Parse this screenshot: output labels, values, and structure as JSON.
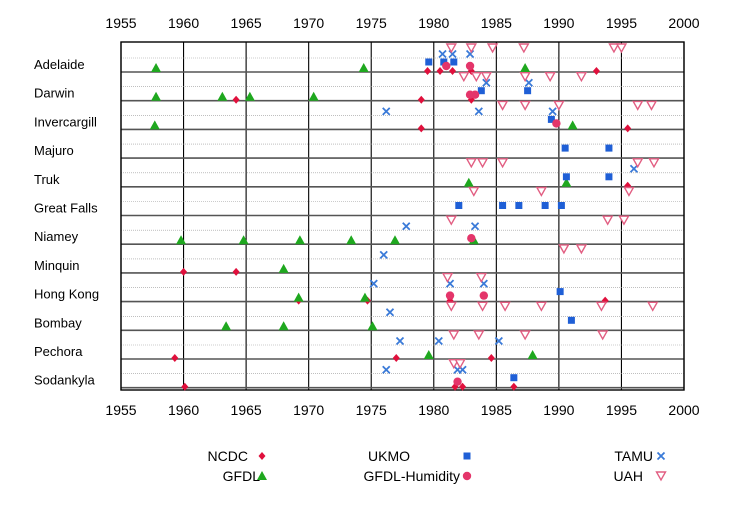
{
  "chart_data": {
    "type": "scatter",
    "title": "",
    "xlabel": "",
    "ylabel": "",
    "xlim": [
      1955,
      2000
    ],
    "x_ticks": [
      1955,
      1960,
      1965,
      1970,
      1975,
      1980,
      1985,
      1990,
      1995,
      2000
    ],
    "grid": true,
    "legend_position": "bottom",
    "stations": [
      "Adelaide",
      "Darwin",
      "Invercargill",
      "Majuro",
      "Truk",
      "Great Falls",
      "Niamey",
      "Minquin",
      "Hong Kong",
      "Bombay",
      "Pechora",
      "Sodankyla"
    ],
    "series": [
      {
        "name": "NCDC",
        "marker": "diamond",
        "color": "#e0103c",
        "points": [
          {
            "station": "Adelaide",
            "x": 1979.5
          },
          {
            "station": "Adelaide",
            "x": 1980.5
          },
          {
            "station": "Adelaide",
            "x": 1981.5
          },
          {
            "station": "Adelaide",
            "x": 1983
          },
          {
            "station": "Adelaide",
            "x": 1993
          },
          {
            "station": "Darwin",
            "x": 1964.2
          },
          {
            "station": "Darwin",
            "x": 1979
          },
          {
            "station": "Darwin",
            "x": 1983
          },
          {
            "station": "Invercargill",
            "x": 1979
          },
          {
            "station": "Invercargill",
            "x": 1995.5
          },
          {
            "station": "Truk",
            "x": 1995.5
          },
          {
            "station": "Minquin",
            "x": 1960
          },
          {
            "station": "Minquin",
            "x": 1964.2
          },
          {
            "station": "Hong Kong",
            "x": 1969.2
          },
          {
            "station": "Hong Kong",
            "x": 1974.7
          },
          {
            "station": "Hong Kong",
            "x": 1981.3
          },
          {
            "station": "Hong Kong",
            "x": 1993.7
          },
          {
            "station": "Pechora",
            "x": 1959.3
          },
          {
            "station": "Pechora",
            "x": 1977
          },
          {
            "station": "Pechora",
            "x": 1984.6
          },
          {
            "station": "Sodankyla",
            "x": 1960.1
          },
          {
            "station": "Sodankyla",
            "x": 1981.7
          },
          {
            "station": "Sodankyla",
            "x": 1982.3
          },
          {
            "station": "Sodankyla",
            "x": 1986.4
          }
        ]
      },
      {
        "name": "GFDL",
        "marker": "triangle",
        "color": "#1fa81f",
        "points": [
          {
            "station": "Adelaide",
            "x": 1957.8
          },
          {
            "station": "Adelaide",
            "x": 1974.4
          },
          {
            "station": "Adelaide",
            "x": 1987.3
          },
          {
            "station": "Darwin",
            "x": 1957.8
          },
          {
            "station": "Darwin",
            "x": 1963.1
          },
          {
            "station": "Darwin",
            "x": 1965.3
          },
          {
            "station": "Darwin",
            "x": 1970.4
          },
          {
            "station": "Invercargill",
            "x": 1957.7
          },
          {
            "station": "Invercargill",
            "x": 1991.1
          },
          {
            "station": "Truk",
            "x": 1982.8
          },
          {
            "station": "Truk",
            "x": 1990.6
          },
          {
            "station": "Niamey",
            "x": 1959.8
          },
          {
            "station": "Niamey",
            "x": 1964.8
          },
          {
            "station": "Niamey",
            "x": 1969.3
          },
          {
            "station": "Niamey",
            "x": 1973.4
          },
          {
            "station": "Niamey",
            "x": 1976.9
          },
          {
            "station": "Niamey",
            "x": 1983.2
          },
          {
            "station": "Minquin",
            "x": 1968
          },
          {
            "station": "Hong Kong",
            "x": 1969.2
          },
          {
            "station": "Hong Kong",
            "x": 1974.5
          },
          {
            "station": "Bombay",
            "x": 1963.4
          },
          {
            "station": "Bombay",
            "x": 1968
          },
          {
            "station": "Bombay",
            "x": 1975.1
          },
          {
            "station": "Pechora",
            "x": 1979.6
          },
          {
            "station": "Pechora",
            "x": 1987.9
          }
        ]
      },
      {
        "name": "UKMO",
        "marker": "square",
        "color": "#1f5fd6",
        "points": [
          {
            "station": "Adelaide",
            "x": 1979.6
          },
          {
            "station": "Adelaide",
            "x": 1980.8
          },
          {
            "station": "Adelaide",
            "x": 1981.6
          },
          {
            "station": "Darwin",
            "x": 1983.8
          },
          {
            "station": "Darwin",
            "x": 1987.5
          },
          {
            "station": "Invercargill",
            "x": 1989.4
          },
          {
            "station": "Majuro",
            "x": 1990.5
          },
          {
            "station": "Majuro",
            "x": 1994
          },
          {
            "station": "Truk",
            "x": 1990.6
          },
          {
            "station": "Truk",
            "x": 1994
          },
          {
            "station": "Great Falls",
            "x": 1982
          },
          {
            "station": "Great Falls",
            "x": 1985.5
          },
          {
            "station": "Great Falls",
            "x": 1986.8
          },
          {
            "station": "Great Falls",
            "x": 1988.9
          },
          {
            "station": "Great Falls",
            "x": 1990.2
          },
          {
            "station": "Hong Kong",
            "x": 1990.1
          },
          {
            "station": "Bombay",
            "x": 1991
          },
          {
            "station": "Sodankyla",
            "x": 1986.4
          }
        ]
      },
      {
        "name": "GFDL-Humidity",
        "marker": "circle",
        "color": "#e4356a",
        "points": [
          {
            "station": "Adelaide",
            "x": 1981
          },
          {
            "station": "Adelaide",
            "x": 1982.9
          },
          {
            "station": "Darwin",
            "x": 1982.9
          },
          {
            "station": "Darwin",
            "x": 1983.3
          },
          {
            "station": "Invercargill",
            "x": 1989.8
          },
          {
            "station": "Niamey",
            "x": 1983
          },
          {
            "station": "Hong Kong",
            "x": 1981.3
          },
          {
            "station": "Hong Kong",
            "x": 1984
          },
          {
            "station": "Sodankyla",
            "x": 1981.9
          }
        ]
      },
      {
        "name": "TAMU",
        "marker": "x",
        "color": "#3a7ad8",
        "points": [
          {
            "station": "Adelaide",
            "x": 1980.7
          },
          {
            "station": "Adelaide",
            "x": 1981.5
          },
          {
            "station": "Adelaide",
            "x": 1982.9
          },
          {
            "station": "Darwin",
            "x": 1984.2
          },
          {
            "station": "Darwin",
            "x": 1987.6
          },
          {
            "station": "Invercargill",
            "x": 1976.2
          },
          {
            "station": "Invercargill",
            "x": 1983.6
          },
          {
            "station": "Invercargill",
            "x": 1989.5
          },
          {
            "station": "Truk",
            "x": 1996
          },
          {
            "station": "Niamey",
            "x": 1977.8
          },
          {
            "station": "Niamey",
            "x": 1983.3
          },
          {
            "station": "Minquin",
            "x": 1976
          },
          {
            "station": "Hong Kong",
            "x": 1975.2
          },
          {
            "station": "Hong Kong",
            "x": 1981.3
          },
          {
            "station": "Hong Kong",
            "x": 1984
          },
          {
            "station": "Bombay",
            "x": 1976.5
          },
          {
            "station": "Pechora",
            "x": 1977.3
          },
          {
            "station": "Pechora",
            "x": 1980.4
          },
          {
            "station": "Pechora",
            "x": 1985.2
          },
          {
            "station": "Sodankyla",
            "x": 1976.2
          },
          {
            "station": "Sodankyla",
            "x": 1981.9
          },
          {
            "station": "Sodankyla",
            "x": 1982.3
          }
        ]
      },
      {
        "name": "UAH",
        "marker": "triangle-down-open",
        "color": "#e25e82",
        "points": [
          {
            "station": "Adelaide",
            "x": 1981.4
          },
          {
            "station": "Adelaide",
            "x": 1983
          },
          {
            "station": "Adelaide",
            "x": 1984.7
          },
          {
            "station": "Adelaide",
            "x": 1987.2
          },
          {
            "station": "Adelaide",
            "x": 1994.4
          },
          {
            "station": "Adelaide",
            "x": 1995
          },
          {
            "station": "Darwin",
            "x": 1982.4
          },
          {
            "station": "Darwin",
            "x": 1983.4
          },
          {
            "station": "Darwin",
            "x": 1984.2
          },
          {
            "station": "Darwin",
            "x": 1987.3
          },
          {
            "station": "Darwin",
            "x": 1989.3
          },
          {
            "station": "Darwin",
            "x": 1991.8
          },
          {
            "station": "Invercargill",
            "x": 1985.5
          },
          {
            "station": "Invercargill",
            "x": 1987.3
          },
          {
            "station": "Invercargill",
            "x": 1990
          },
          {
            "station": "Invercargill",
            "x": 1996.3
          },
          {
            "station": "Invercargill",
            "x": 1997.4
          },
          {
            "station": "Truk",
            "x": 1983
          },
          {
            "station": "Truk",
            "x": 1983.9
          },
          {
            "station": "Truk",
            "x": 1985.5
          },
          {
            "station": "Truk",
            "x": 1996.3
          },
          {
            "station": "Truk",
            "x": 1997.6
          },
          {
            "station": "Great Falls",
            "x": 1983.2
          },
          {
            "station": "Great Falls",
            "x": 1988.6
          },
          {
            "station": "Great Falls",
            "x": 1995.6
          },
          {
            "station": "Niamey",
            "x": 1981.4
          },
          {
            "station": "Niamey",
            "x": 1993.9
          },
          {
            "station": "Niamey",
            "x": 1995.2
          },
          {
            "station": "Minquin",
            "x": 1990.4
          },
          {
            "station": "Minquin",
            "x": 1991.8
          },
          {
            "station": "Hong Kong",
            "x": 1981.1
          },
          {
            "station": "Hong Kong",
            "x": 1983.8
          },
          {
            "station": "Bombay",
            "x": 1981.4
          },
          {
            "station": "Bombay",
            "x": 1983.9
          },
          {
            "station": "Bombay",
            "x": 1985.7
          },
          {
            "station": "Bombay",
            "x": 1988.6
          },
          {
            "station": "Bombay",
            "x": 1993.4
          },
          {
            "station": "Bombay",
            "x": 1997.5
          },
          {
            "station": "Pechora",
            "x": 1981.6
          },
          {
            "station": "Pechora",
            "x": 1983.6
          },
          {
            "station": "Pechora",
            "x": 1987.3
          },
          {
            "station": "Pechora",
            "x": 1993.5
          },
          {
            "station": "Sodankyla",
            "x": 1981.6
          },
          {
            "station": "Sodankyla",
            "x": 1982.1
          }
        ]
      }
    ]
  }
}
